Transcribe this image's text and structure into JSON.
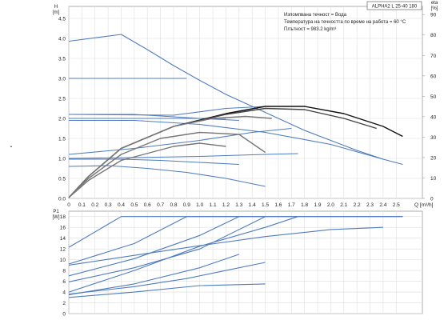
{
  "chart_data": [
    {
      "type": "line",
      "panel": "head",
      "xlabel": "Q [m³/h]",
      "ylabel_left": "H\n[m]",
      "ylabel_right": "eta\n[%]",
      "ylim": [
        0,
        4.8
      ],
      "y2lim": [
        0,
        94
      ],
      "xlim": [
        0,
        2.7
      ],
      "grid": true,
      "x_ticks": [
        "0",
        "0.1",
        "0.2",
        "0.3",
        "0.4",
        "0.5",
        "0.6",
        "0.7",
        "0.8",
        "0.9",
        "1.0",
        "1.1",
        "1.2",
        "1.3",
        "1.4",
        "1.5",
        "1.6",
        "1.7",
        "1.8",
        "1.9",
        "2.0",
        "2.1",
        "2.2",
        "2.3",
        "2.4",
        "2.5"
      ],
      "y_ticks": [
        "0.0",
        "0.5",
        "1.0",
        "1.5",
        "2.0",
        "2.5",
        "3.0",
        "3.5",
        "4.0",
        "4.5"
      ],
      "y2_ticks": [
        "0",
        "10",
        "20",
        "30",
        "40",
        "50",
        "60",
        "70",
        "80",
        "90"
      ],
      "annotations": [
        "Изпомпвана течност = Вода",
        "Температура на течността по време на работа = 60 °C",
        "Плътност = 983.2 kg/m³"
      ],
      "title_box": "ALPHA2 L 25-40 180",
      "series": [
        {
          "style": "blue",
          "x": [
            0,
            0.4,
            0.6,
            0.8,
            1.0,
            1.2,
            1.4,
            1.6,
            1.8,
            2.0,
            2.2,
            2.4,
            2.55
          ],
          "y": [
            3.93,
            4.1,
            3.72,
            3.32,
            2.95,
            2.6,
            2.3,
            2.0,
            1.7,
            1.45,
            1.2,
            0.98,
            0.85
          ]
        },
        {
          "style": "blue",
          "x": [
            0,
            0.9
          ],
          "y": [
            3.0,
            3.0
          ]
        },
        {
          "style": "blue",
          "x": [
            0,
            0.8,
            1.2,
            1.5
          ],
          "y": [
            2.1,
            2.08,
            2.25,
            2.3
          ]
        },
        {
          "style": "blue",
          "x": [
            0,
            1.2
          ],
          "y": [
            2.0,
            2.0
          ]
        },
        {
          "style": "blue",
          "x": [
            0,
            0.5,
            1.0,
            1.3
          ],
          "y": [
            2.1,
            2.1,
            2.0,
            1.95
          ]
        },
        {
          "style": "blue",
          "x": [
            0,
            0.5,
            1.0,
            1.5,
            2.0,
            2.4
          ],
          "y": [
            1.95,
            1.95,
            1.85,
            1.65,
            1.35,
            0.98
          ]
        },
        {
          "style": "blue",
          "x": [
            0,
            0.5,
            1.0,
            1.4,
            1.7
          ],
          "y": [
            1.1,
            1.25,
            1.45,
            1.65,
            1.75
          ]
        },
        {
          "style": "blue",
          "x": [
            0,
            0.5,
            1.0,
            1.5,
            1.75
          ],
          "y": [
            1.0,
            1.02,
            1.05,
            1.1,
            1.12
          ]
        },
        {
          "style": "blue",
          "x": [
            0,
            0.4,
            0.7,
            1.0,
            1.3
          ],
          "y": [
            0.98,
            0.98,
            0.95,
            0.9,
            0.85
          ]
        },
        {
          "style": "blue",
          "x": [
            0,
            0.3,
            0.6,
            0.9,
            1.2,
            1.5
          ],
          "y": [
            0.8,
            0.82,
            0.75,
            0.65,
            0.5,
            0.3
          ]
        },
        {
          "style": "black",
          "x": [
            0,
            0.15,
            0.4,
            0.8,
            1.2,
            1.5,
            1.8,
            2.1,
            2.4,
            2.55
          ],
          "y": [
            0.02,
            0.55,
            1.25,
            1.8,
            2.12,
            2.3,
            2.3,
            2.12,
            1.8,
            1.55
          ]
        },
        {
          "style": "dark",
          "x": [
            0,
            0.15,
            0.4,
            0.8,
            1.2,
            1.5,
            1.8,
            2.1,
            2.35
          ],
          "y": [
            0.02,
            0.55,
            1.25,
            1.8,
            2.1,
            2.25,
            2.22,
            2.0,
            1.75
          ]
        },
        {
          "style": "gray",
          "x": [
            0,
            0.15,
            0.4,
            0.8,
            1.1,
            1.35,
            1.55
          ],
          "y": [
            0.02,
            0.55,
            1.25,
            1.8,
            2.0,
            2.05,
            2.0
          ]
        },
        {
          "style": "gray",
          "x": [
            0,
            0.15,
            0.4,
            0.7,
            1.0,
            1.3,
            1.5
          ],
          "y": [
            0.02,
            0.5,
            1.1,
            1.5,
            1.65,
            1.6,
            1.15
          ]
        },
        {
          "style": "gray",
          "x": [
            0,
            0.15,
            0.4,
            0.8,
            1.0,
            1.2
          ],
          "y": [
            0.02,
            0.45,
            0.95,
            1.3,
            1.38,
            1.3
          ]
        }
      ]
    },
    {
      "type": "line",
      "panel": "power",
      "xlabel": "Q [m³/h]",
      "ylabel_left": "P1\n[W]",
      "ylim": [
        0,
        19
      ],
      "xlim": [
        0,
        2.7
      ],
      "grid": true,
      "y_ticks": [
        "0",
        "2",
        "4",
        "6",
        "8",
        "10",
        "12",
        "14",
        "16",
        "18"
      ],
      "series": [
        {
          "style": "blue",
          "x": [
            0,
            0.4,
            2.55
          ],
          "y": [
            12.3,
            18,
            18
          ]
        },
        {
          "style": "blue",
          "x": [
            0,
            0.5,
            0.9,
            2.55
          ],
          "y": [
            9.2,
            13,
            18,
            18
          ]
        },
        {
          "style": "blue",
          "x": [
            0,
            0.5,
            1.0,
            1.3
          ],
          "y": [
            7.0,
            10.2,
            14.5,
            18
          ]
        },
        {
          "style": "blue",
          "x": [
            0,
            0.5,
            1.0,
            1.5
          ],
          "y": [
            5.9,
            8.5,
            12.0,
            18
          ]
        },
        {
          "style": "blue",
          "x": [
            0,
            0.5,
            1.0,
            1.5,
            1.75
          ],
          "y": [
            4.0,
            8.0,
            12.5,
            16,
            18
          ]
        },
        {
          "style": "blue",
          "x": [
            0,
            0.5,
            1.0,
            1.5,
            2.0,
            2.4
          ],
          "y": [
            9.0,
            10.8,
            12.6,
            14.3,
            15.6,
            16
          ]
        },
        {
          "style": "blue",
          "x": [
            0,
            0.5,
            1.0,
            1.3
          ],
          "y": [
            3.5,
            5.5,
            8.5,
            11
          ]
        },
        {
          "style": "blue",
          "x": [
            0,
            0.5,
            0.9,
            1.2,
            1.5
          ],
          "y": [
            3.6,
            5.0,
            6.5,
            8.0,
            9.5
          ]
        },
        {
          "style": "blue",
          "x": [
            0,
            0.5,
            1.0,
            1.5
          ],
          "y": [
            3.0,
            4.0,
            5.2,
            5.5
          ]
        }
      ]
    }
  ]
}
